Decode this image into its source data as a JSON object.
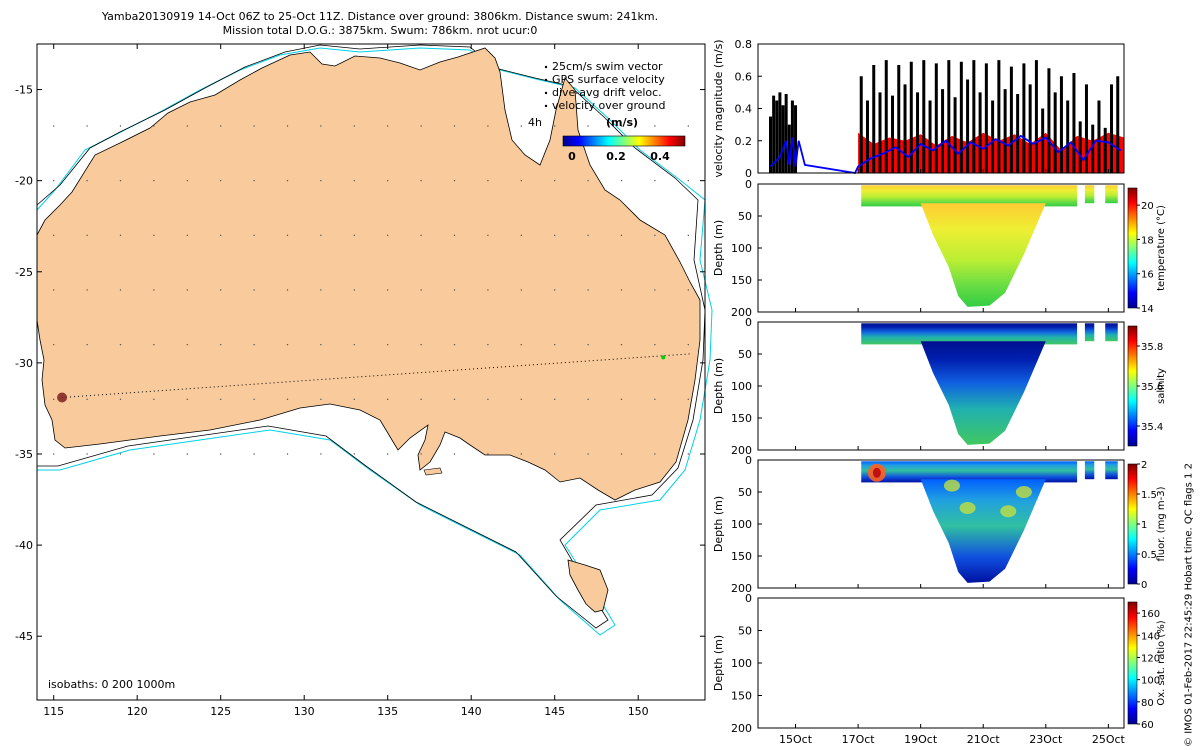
{
  "header": {
    "line1": "Yamba20130919 14-Oct 06Z to 25-Oct 11Z. Distance over ground: 3806km. Distance swum: 241km.",
    "line2": "Mission total D.O.G.: 3875km. Swum: 786km. nrot ucur:0"
  },
  "side_note": "© IMOS 01-Feb-2017 22:45:29 Hobart time. QC flags 1 2",
  "colors": {
    "land": "#f9cb9c",
    "ocean_isobath": "#00d2e6",
    "track": "#000000",
    "velocity_fill": "#ff0000",
    "velocity_line": "#0000ff"
  },
  "chart_data": [
    {
      "type": "map",
      "xlim": [
        114,
        154
      ],
      "ylim": [
        -48.5,
        -12.5
      ],
      "x_ticks": [
        "115",
        "120",
        "125",
        "130",
        "135",
        "140",
        "145",
        "150"
      ],
      "y_ticks": [
        "-15",
        "-20",
        "-25",
        "-30",
        "-35",
        "-40",
        "-45"
      ],
      "legend": {
        "items": [
          "25cm/s swim vector",
          "GPS surface velocity",
          "dive-avg drift veloc.",
          "velocity over ground"
        ],
        "time_marker": "4h",
        "colorbar_label": "(m/s)",
        "colorbar_ticks": [
          "0",
          "0.2",
          "0.4"
        ]
      },
      "isobaths_note": "isobaths: 0   200  1000m",
      "track": {
        "start": {
          "lon": 115.5,
          "lat": -31.9
        },
        "end": {
          "lon": 153.2,
          "lat": -29.5
        },
        "current": {
          "lon": 151.5,
          "lat": -29.7
        }
      }
    },
    {
      "type": "area",
      "ylabel": "velocity magnitude (m/s)",
      "ylim": [
        0,
        0.8
      ],
      "y_ticks": [
        "0",
        "0.2",
        "0.4",
        "0.6",
        "0.8"
      ],
      "xlim": [
        13.8,
        25.5
      ],
      "blue_line": {
        "x": [
          14.2,
          14.5,
          14.7,
          14.8,
          14.9,
          15.0,
          15.1,
          15.3,
          16.9,
          17.0,
          17.4,
          17.8,
          18.2,
          18.6,
          19.0,
          19.4,
          19.8,
          20.2,
          20.6,
          21.0,
          21.4,
          21.8,
          22.2,
          22.6,
          23.0,
          23.4,
          23.8,
          24.2,
          24.6,
          25.0,
          25.4
        ],
        "y": [
          0.04,
          0.1,
          0.2,
          0.05,
          0.22,
          0.04,
          0.2,
          0.05,
          0.0,
          0.04,
          0.09,
          0.12,
          0.16,
          0.1,
          0.18,
          0.14,
          0.2,
          0.12,
          0.19,
          0.15,
          0.21,
          0.17,
          0.23,
          0.18,
          0.22,
          0.13,
          0.19,
          0.08,
          0.2,
          0.19,
          0.14
        ]
      },
      "red_fill": {
        "x": [
          17.0,
          17.5,
          18.0,
          18.5,
          19.0,
          19.5,
          20.0,
          20.5,
          21.0,
          21.5,
          22.0,
          22.5,
          23.0,
          23.5,
          24.0,
          24.5,
          25.0,
          25.5
        ],
        "y": [
          0.25,
          0.18,
          0.22,
          0.2,
          0.24,
          0.17,
          0.23,
          0.19,
          0.25,
          0.2,
          0.24,
          0.18,
          0.25,
          0.14,
          0.23,
          0.2,
          0.25,
          0.22
        ]
      },
      "black_spikes": {
        "x": [
          14.2,
          14.3,
          14.4,
          14.5,
          14.6,
          14.7,
          14.8,
          14.9,
          15.0,
          17.1,
          17.3,
          17.5,
          17.7,
          17.9,
          18.1,
          18.3,
          18.5,
          18.7,
          18.9,
          19.1,
          19.3,
          19.5,
          19.7,
          19.9,
          20.1,
          20.3,
          20.5,
          20.7,
          20.9,
          21.1,
          21.3,
          21.5,
          21.7,
          21.9,
          22.1,
          22.3,
          22.5,
          22.7,
          22.9,
          23.1,
          23.3,
          23.5,
          23.7,
          23.9,
          24.1,
          24.3,
          24.5,
          24.7,
          24.9,
          25.1,
          25.3
        ],
        "y": [
          0.35,
          0.48,
          0.45,
          0.5,
          0.42,
          0.49,
          0.3,
          0.45,
          0.42,
          0.6,
          0.45,
          0.67,
          0.5,
          0.7,
          0.48,
          0.67,
          0.55,
          0.69,
          0.5,
          0.7,
          0.45,
          0.68,
          0.52,
          0.7,
          0.47,
          0.69,
          0.58,
          0.7,
          0.5,
          0.68,
          0.45,
          0.7,
          0.52,
          0.66,
          0.49,
          0.68,
          0.55,
          0.7,
          0.4,
          0.65,
          0.5,
          0.6,
          0.45,
          0.62,
          0.32,
          0.55,
          0.3,
          0.45,
          0.28,
          0.55,
          0.6
        ]
      }
    },
    {
      "type": "heatmap",
      "ylabel": "Depth (m)",
      "ylim": [
        0,
        200
      ],
      "y_ticks": [
        "0",
        "50",
        "100",
        "150",
        "200"
      ],
      "colorbar_label": "temperature (°C)",
      "colorbar_ticks": [
        "14",
        "16",
        "18",
        "20"
      ],
      "value_range": [
        14,
        21
      ]
    },
    {
      "type": "heatmap",
      "ylabel": "Depth (m)",
      "ylim": [
        0,
        200
      ],
      "y_ticks": [
        "0",
        "50",
        "100",
        "150",
        "200"
      ],
      "colorbar_label": "salinity",
      "colorbar_ticks": [
        "35.4",
        "35.6",
        "35.8"
      ],
      "value_range": [
        35.3,
        35.9
      ]
    },
    {
      "type": "heatmap",
      "ylabel": "Depth (m)",
      "ylim": [
        0,
        200
      ],
      "y_ticks": [
        "0",
        "50",
        "100",
        "150",
        "200"
      ],
      "colorbar_label": "fluor. (mg m-3)",
      "colorbar_ticks": [
        "0",
        "0.5",
        "1",
        "1.5",
        "2"
      ],
      "value_range": [
        0,
        2
      ]
    },
    {
      "type": "heatmap",
      "ylabel": "Depth (m)",
      "ylim": [
        0,
        200
      ],
      "y_ticks": [
        "0",
        "50",
        "100",
        "150",
        "200"
      ],
      "colorbar_label": "Ox. sat. ratio (%)",
      "colorbar_ticks": [
        "60",
        "80",
        "100",
        "120",
        "140",
        "160"
      ],
      "value_range": [
        60,
        170
      ],
      "x_ticks": [
        "15Oct",
        "17Oct",
        "19Oct",
        "21Oct",
        "23Oct",
        "25Oct"
      ]
    }
  ]
}
